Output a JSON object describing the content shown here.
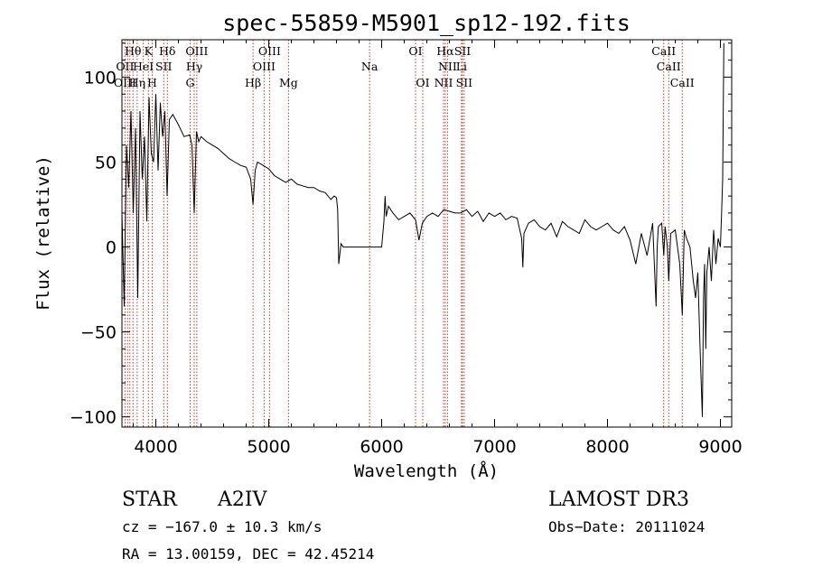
{
  "chart_data": {
    "type": "line",
    "title": "spec-55859-M5901_sp12-192.fits",
    "xlabel": "Wavelength (Å)",
    "ylabel": "Flux (relative)",
    "xlim": [
      3700,
      9100
    ],
    "ylim": [
      -106,
      122
    ],
    "xticks": [
      4000,
      5000,
      6000,
      7000,
      8000,
      9000
    ],
    "yticks": [
      -100,
      -50,
      0,
      50,
      100
    ],
    "grid": false,
    "series": [
      {
        "name": "flux",
        "x": [
          3700,
          3720,
          3740,
          3760,
          3780,
          3800,
          3820,
          3840,
          3860,
          3880,
          3900,
          3920,
          3940,
          3960,
          3980,
          4000,
          4020,
          4040,
          4060,
          4080,
          4100,
          4120,
          4150,
          4200,
          4250,
          4300,
          4320,
          4340,
          4360,
          4380,
          4400,
          4450,
          4500,
          4550,
          4600,
          4650,
          4700,
          4750,
          4800,
          4840,
          4861,
          4880,
          4900,
          4950,
          5000,
          5050,
          5100,
          5150,
          5200,
          5250,
          5300,
          5350,
          5400,
          5450,
          5500,
          5550,
          5580,
          5600,
          5610,
          5620,
          5640,
          5660,
          5700,
          5800,
          5900,
          6000,
          6020,
          6030,
          6040,
          6060,
          6100,
          6150,
          6200,
          6250,
          6300,
          6330,
          6360,
          6400,
          6450,
          6500,
          6550,
          6600,
          6650,
          6700,
          6750,
          6800,
          6850,
          6900,
          6950,
          7000,
          7050,
          7100,
          7150,
          7200,
          7240,
          7250,
          7260,
          7300,
          7350,
          7400,
          7450,
          7500,
          7550,
          7600,
          7650,
          7700,
          7750,
          7800,
          7850,
          7900,
          7950,
          8000,
          8050,
          8100,
          8150,
          8200,
          8250,
          8300,
          8350,
          8400,
          8430,
          8440,
          8450,
          8480,
          8498,
          8510,
          8530,
          8542,
          8560,
          8600,
          8640,
          8662,
          8680,
          8700,
          8730,
          8760,
          8780,
          8800,
          8820,
          8840,
          8850,
          8860,
          8870,
          8880,
          8900,
          8920,
          8940,
          8960,
          8980,
          9000,
          9010,
          9020,
          9030
        ],
        "y": [
          20,
          -35,
          60,
          35,
          80,
          20,
          70,
          -30,
          80,
          40,
          65,
          15,
          88,
          55,
          50,
          90,
          45,
          85,
          65,
          80,
          30,
          75,
          78,
          72,
          65,
          66,
          60,
          20,
          68,
          62,
          65,
          62,
          60,
          58,
          55,
          52,
          50,
          48,
          47,
          40,
          25,
          45,
          50,
          48,
          46,
          42,
          40,
          38,
          40,
          37,
          36,
          35,
          35,
          33,
          32,
          28,
          30,
          29,
          22,
          -10,
          2,
          0,
          0,
          0,
          0,
          0,
          15,
          30,
          18,
          24,
          20,
          16,
          18,
          20,
          16,
          4,
          14,
          18,
          20,
          18,
          22,
          21,
          20,
          20,
          22,
          18,
          21,
          15,
          20,
          18,
          20,
          16,
          18,
          17,
          5,
          -12,
          8,
          14,
          16,
          12,
          10,
          14,
          6,
          15,
          12,
          10,
          8,
          16,
          12,
          10,
          12,
          14,
          10,
          8,
          12,
          4,
          -10,
          8,
          -5,
          14,
          -35,
          0,
          12,
          14,
          -5,
          12,
          0,
          -20,
          8,
          10,
          -10,
          -40,
          10,
          5,
          0,
          -20,
          -30,
          -15,
          -60,
          -100,
          -30,
          -10,
          -60,
          -15,
          0,
          -20,
          10,
          -10,
          5,
          0,
          20,
          40,
          120
        ]
      }
    ],
    "line_labels": [
      {
        "text": "Hθ",
        "x": 3798,
        "row": 1
      },
      {
        "text": "K",
        "x": 3934,
        "row": 1
      },
      {
        "text": "Hδ",
        "x": 4102,
        "row": 1
      },
      {
        "text": "OIII",
        "x": 4363,
        "row": 1
      },
      {
        "text": "OIII",
        "x": 5007,
        "row": 1
      },
      {
        "text": "OI",
        "x": 6300,
        "row": 1
      },
      {
        "text": "Hα",
        "x": 6563,
        "row": 1
      },
      {
        "text": "SII",
        "x": 6716,
        "row": 1
      },
      {
        "text": "CaII",
        "x": 8498,
        "row": 1
      },
      {
        "text": "OII",
        "x": 3727,
        "row": 2
      },
      {
        "text": "HeI",
        "x": 3889,
        "row": 2
      },
      {
        "text": "SII",
        "x": 4070,
        "row": 2
      },
      {
        "text": "Hγ",
        "x": 4340,
        "row": 2
      },
      {
        "text": "OIII",
        "x": 4959,
        "row": 2
      },
      {
        "text": "Na",
        "x": 5893,
        "row": 2
      },
      {
        "text": "NII",
        "x": 6583,
        "row": 2
      },
      {
        "text": "Li",
        "x": 6707,
        "row": 2
      },
      {
        "text": "CaII",
        "x": 8542,
        "row": 2
      },
      {
        "text": "OIII",
        "x": 3727,
        "row": 3
      },
      {
        "text": "Hη",
        "x": 3835,
        "row": 3
      },
      {
        "text": "H",
        "x": 3968,
        "row": 3
      },
      {
        "text": "G",
        "x": 4304,
        "row": 3
      },
      {
        "text": "Hβ",
        "x": 4861,
        "row": 3
      },
      {
        "text": "Mg",
        "x": 5175,
        "row": 3
      },
      {
        "text": "OI",
        "x": 6364,
        "row": 3
      },
      {
        "text": "NII",
        "x": 6548,
        "row": 3
      },
      {
        "text": "SII",
        "x": 6731,
        "row": 3
      },
      {
        "text": "CaII",
        "x": 8662,
        "row": 3
      }
    ],
    "line_positions": [
      3727,
      3750,
      3770,
      3798,
      3835,
      3889,
      3934,
      3968,
      4070,
      4102,
      4304,
      4340,
      4363,
      4861,
      4959,
      5007,
      5175,
      5893,
      6300,
      6364,
      6548,
      6563,
      6583,
      6707,
      6716,
      6731,
      8498,
      8542,
      8662
    ]
  },
  "info": {
    "class": "STAR",
    "subclass": "A2IV",
    "survey": "LAMOST DR3",
    "cz": "cz = −167.0 ± 10.3 km/s",
    "obs_date": "Obs−Date: 20111024",
    "coords": "RA =  13.00159, DEC =  42.45214"
  },
  "colors": {
    "line_marker": "#c0392b",
    "spectrum": "#000000"
  }
}
